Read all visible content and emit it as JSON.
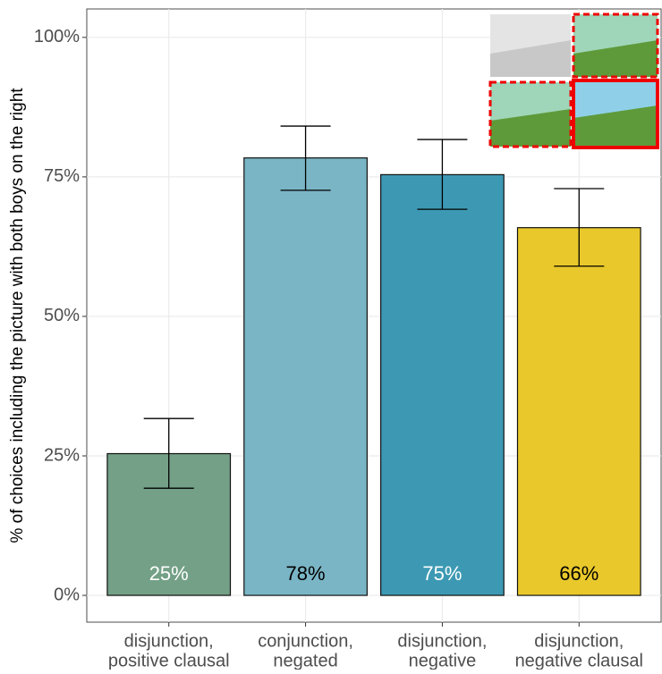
{
  "chart_data": {
    "type": "bar",
    "y_label": "% of choices including the picture with both boys on the right",
    "categories": [
      [
        "disjunction,",
        "positive clausal"
      ],
      [
        "conjunction,",
        "negated"
      ],
      [
        "disjunction,",
        "negative"
      ],
      [
        "disjunction,",
        "negative clausal"
      ]
    ],
    "values": [
      25.4,
      78.4,
      75.4,
      65.9
    ],
    "value_labels": [
      "25%",
      "78%",
      "75%",
      "66%"
    ],
    "value_label_colors": [
      "#ffffff",
      "#000000",
      "#ffffff",
      "#000000"
    ],
    "colors": [
      "#73a086",
      "#7ab5c5",
      "#3d99b3",
      "#e9c82b"
    ],
    "error_low": [
      19.2,
      72.6,
      69.2,
      59.0
    ],
    "error_high": [
      31.7,
      84.1,
      81.7,
      72.9
    ],
    "ylim": [
      -4.8,
      105.1
    ],
    "yticks": [
      {
        "value": 0,
        "label": "0%"
      },
      {
        "value": 25,
        "label": "25%"
      },
      {
        "value": 50,
        "label": "50%"
      },
      {
        "value": 75,
        "label": "75%"
      },
      {
        "value": 100,
        "label": "100%"
      }
    ],
    "grid": true
  }
}
